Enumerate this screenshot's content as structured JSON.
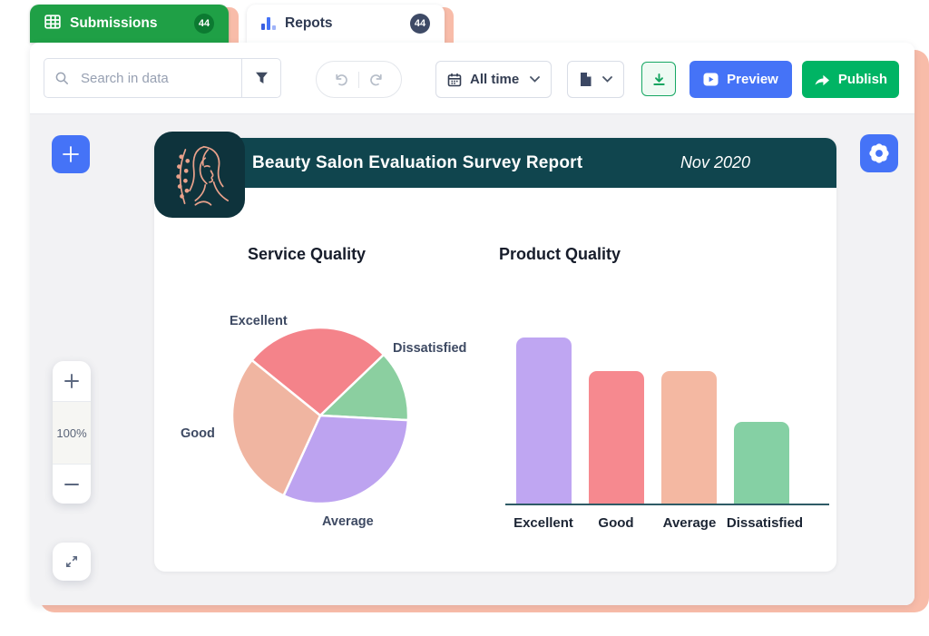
{
  "tabs": {
    "submissions": {
      "label": "Submissions",
      "badge": "44",
      "icon": "table-grid-icon"
    },
    "reports": {
      "label": "Repots",
      "badge": "44",
      "icon": "bar-chart-icon"
    }
  },
  "toolbar": {
    "search_placeholder": "Search in data",
    "date_range_label": "All time",
    "preview_label": "Preview",
    "publish_label": "Publish"
  },
  "canvas_controls": {
    "zoom_level": "100%"
  },
  "report": {
    "title": "Beauty Salon Evaluation Survey Report",
    "date": "Nov 2020"
  },
  "chart_data": [
    {
      "type": "pie",
      "title": "Service Quality",
      "labels": [
        "Excellent",
        "Dissatisfied",
        "Average",
        "Good"
      ],
      "values": [
        27,
        13,
        31,
        29
      ],
      "colors": [
        "#F4838A",
        "#8BCFA0",
        "#BDA3F0",
        "#F0B5A1"
      ],
      "start_angle_deg": -51,
      "legend_position": "outside-labels"
    },
    {
      "type": "bar",
      "title": "Product Quality",
      "categories": [
        "Excellent",
        "Good",
        "Average",
        "Dissatisfied"
      ],
      "values": [
        100,
        80,
        80,
        49
      ],
      "value_unit": "relative-height-percent (no value axis shown)",
      "colors": [
        "#BFA6F2",
        "#F6898F",
        "#F4B8A2",
        "#85D0A4"
      ],
      "ylim": [
        0,
        100
      ],
      "grid": false,
      "axis_line_color": "#2E5B66"
    }
  ],
  "colors": {
    "accent_blue": "#4573F7",
    "publish_green": "#00B464",
    "download_green": "#16A763",
    "tab_green": "#1FA046",
    "badge_dark_green": "#0C7A31",
    "badge_navy": "#3E4A66",
    "frame_salmon": "#F8BCA9",
    "header_teal": "#10454E",
    "logo_teal": "#0E333C",
    "canvas_gray": "#F2F2F4",
    "label_slate": "#3E4A63"
  }
}
